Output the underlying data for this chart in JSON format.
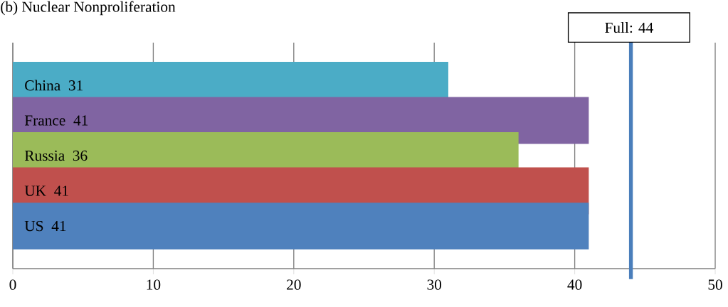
{
  "chart_data": {
    "type": "bar",
    "orientation": "horizontal",
    "title": "(b) Nuclear Nonproliferation",
    "categories": [
      "China",
      "France",
      "Russia",
      "UK",
      "US"
    ],
    "values": [
      31,
      41,
      36,
      41,
      41
    ],
    "colors": [
      "#4bacc6",
      "#8064a2",
      "#9bbb59",
      "#c0504d",
      "#4f81bd"
    ],
    "xlim": [
      0,
      50
    ],
    "xticks": [
      0,
      10,
      20,
      30,
      40,
      50
    ],
    "grid": "x",
    "tick_labels": "x",
    "data_labels": true,
    "ref_lines": [
      {
        "axis": "x",
        "value": 44,
        "label": "Full: 44",
        "color": "#4a7ebb"
      }
    ]
  }
}
